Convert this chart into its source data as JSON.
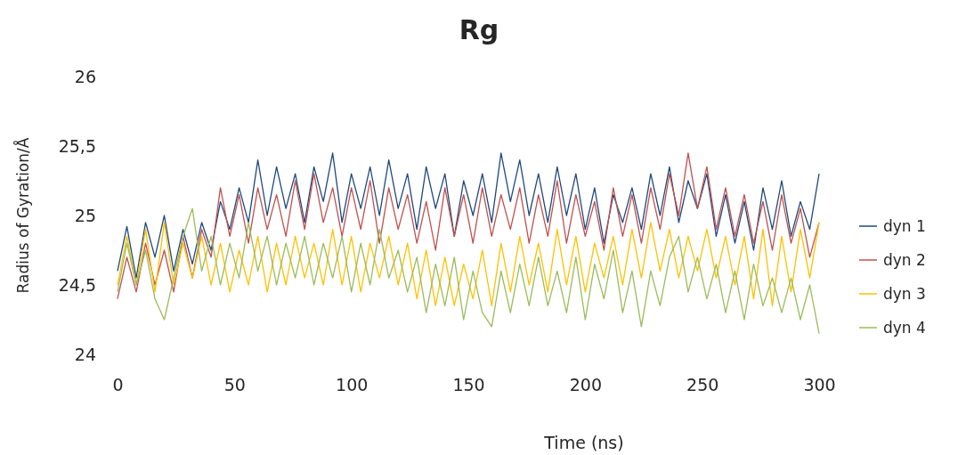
{
  "chart_data": {
    "type": "line",
    "title": "Rg",
    "xlabel": "Time (ns)",
    "ylabel": "Radius of Gyration/Å",
    "x": [
      0,
      4,
      8,
      12,
      16,
      20,
      24,
      28,
      32,
      36,
      40,
      44,
      48,
      52,
      56,
      60,
      64,
      68,
      72,
      76,
      80,
      84,
      88,
      92,
      96,
      100,
      104,
      108,
      112,
      116,
      120,
      124,
      128,
      132,
      136,
      140,
      144,
      148,
      152,
      156,
      160,
      164,
      168,
      172,
      176,
      180,
      184,
      188,
      192,
      196,
      200,
      204,
      208,
      212,
      216,
      220,
      224,
      228,
      232,
      236,
      240,
      244,
      248,
      252,
      256,
      260,
      264,
      268,
      272,
      276,
      280,
      284,
      288,
      292,
      296,
      300
    ],
    "series": [
      {
        "name": "dyn 1",
        "color": "#1f497d",
        "values": [
          24.6,
          24.92,
          24.55,
          24.95,
          24.7,
          25.0,
          24.6,
          24.9,
          24.65,
          24.95,
          24.75,
          25.1,
          24.9,
          25.2,
          24.95,
          25.4,
          25.0,
          25.35,
          25.05,
          25.3,
          24.95,
          25.35,
          25.1,
          25.45,
          24.95,
          25.3,
          25.05,
          25.35,
          25.0,
          25.4,
          25.05,
          25.3,
          24.9,
          25.35,
          25.05,
          25.3,
          24.85,
          25.25,
          25.0,
          25.3,
          24.95,
          25.45,
          25.1,
          25.4,
          25.0,
          25.3,
          24.95,
          25.35,
          25.0,
          25.3,
          24.9,
          25.2,
          24.8,
          25.15,
          24.95,
          25.2,
          24.9,
          25.3,
          25.0,
          25.35,
          24.95,
          25.25,
          25.05,
          25.3,
          24.85,
          25.15,
          24.8,
          25.1,
          24.75,
          25.2,
          24.9,
          25.25,
          24.85,
          25.1,
          24.9,
          25.3
        ]
      },
      {
        "name": "dyn 2",
        "color": "#c0504d",
        "values": [
          24.4,
          24.7,
          24.45,
          24.8,
          24.5,
          24.75,
          24.45,
          24.85,
          24.55,
          24.9,
          24.7,
          25.2,
          24.85,
          25.15,
          24.8,
          25.2,
          24.9,
          25.15,
          24.85,
          25.25,
          24.9,
          25.3,
          24.95,
          25.2,
          24.85,
          25.2,
          24.9,
          25.25,
          24.8,
          25.2,
          24.9,
          25.15,
          24.8,
          25.1,
          24.75,
          25.2,
          24.85,
          25.15,
          24.8,
          25.2,
          24.85,
          25.15,
          24.9,
          25.2,
          24.8,
          25.15,
          24.85,
          25.25,
          24.8,
          25.15,
          24.85,
          25.1,
          24.75,
          25.2,
          24.85,
          25.15,
          24.8,
          25.2,
          24.9,
          25.3,
          25.0,
          25.45,
          25.05,
          25.35,
          24.9,
          25.2,
          24.85,
          25.15,
          24.8,
          25.1,
          24.75,
          25.15,
          24.8,
          25.05,
          24.7,
          24.95
        ]
      },
      {
        "name": "dyn 3",
        "color": "#ffc000",
        "values": [
          24.5,
          24.85,
          24.5,
          24.9,
          24.45,
          24.95,
          24.5,
          24.8,
          24.55,
          24.85,
          24.5,
          24.8,
          24.45,
          24.75,
          24.5,
          24.85,
          24.45,
          24.8,
          24.5,
          24.85,
          24.55,
          24.8,
          24.5,
          24.9,
          24.5,
          24.85,
          24.45,
          24.8,
          24.55,
          24.85,
          24.5,
          24.8,
          24.4,
          24.75,
          24.35,
          24.7,
          24.35,
          24.65,
          24.4,
          24.75,
          24.35,
          24.8,
          24.45,
          24.85,
          24.5,
          24.8,
          24.45,
          24.9,
          24.5,
          24.85,
          24.45,
          24.8,
          24.55,
          24.85,
          24.5,
          24.9,
          24.55,
          24.95,
          24.6,
          24.9,
          24.55,
          24.85,
          24.6,
          24.9,
          24.55,
          24.85,
          24.5,
          24.85,
          24.4,
          24.9,
          24.35,
          24.85,
          24.45,
          24.9,
          24.55,
          24.95
        ]
      },
      {
        "name": "dyn 4",
        "color": "#9bbb59",
        "values": [
          24.45,
          24.8,
          24.5,
          24.75,
          24.4,
          24.25,
          24.55,
          24.85,
          25.05,
          24.6,
          24.85,
          24.5,
          24.8,
          24.55,
          24.95,
          24.6,
          24.85,
          24.5,
          24.8,
          24.55,
          24.85,
          24.5,
          24.8,
          24.55,
          24.85,
          24.45,
          24.8,
          24.5,
          24.9,
          24.55,
          24.75,
          24.45,
          24.7,
          24.3,
          24.65,
          24.35,
          24.7,
          24.25,
          24.6,
          24.3,
          24.2,
          24.6,
          24.3,
          24.65,
          24.35,
          24.7,
          24.35,
          24.6,
          24.3,
          24.7,
          24.25,
          24.65,
          24.4,
          24.75,
          24.3,
          24.6,
          24.2,
          24.6,
          24.35,
          24.7,
          24.85,
          24.45,
          24.7,
          24.4,
          24.65,
          24.3,
          24.6,
          24.25,
          24.65,
          24.35,
          24.55,
          24.3,
          24.55,
          24.25,
          24.5,
          24.15
        ]
      }
    ],
    "xlim": [
      0,
      300
    ],
    "xticks": [
      0,
      50,
      100,
      150,
      200,
      250,
      300
    ],
    "ylim": [
      24,
      26
    ],
    "yticks": [
      24,
      {
        "value": 24.5,
        "label": "24,5"
      },
      25,
      {
        "value": 25.5,
        "label": "25,5"
      },
      26
    ],
    "legend": "right",
    "grid": false,
    "marker": "none",
    "line_style": "solid"
  }
}
